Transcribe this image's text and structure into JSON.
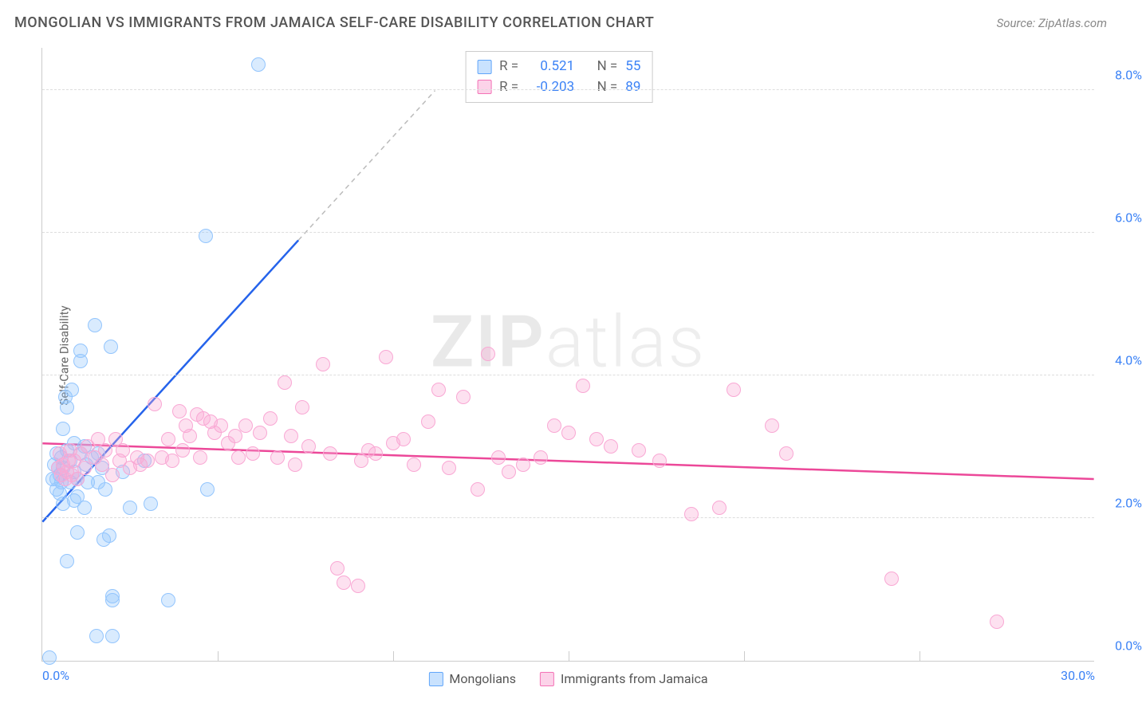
{
  "title": "MONGOLIAN VS IMMIGRANTS FROM JAMAICA SELF-CARE DISABILITY CORRELATION CHART",
  "source": "Source: ZipAtlas.com",
  "y_axis_label": "Self-Care Disability",
  "watermark_bold": "ZIP",
  "watermark_light": "atlas",
  "chart": {
    "type": "scatter",
    "xlim": [
      0,
      30
    ],
    "ylim": [
      0,
      8.6
    ],
    "y_ticks": [
      0,
      2,
      4,
      6,
      8
    ],
    "y_tick_labels": [
      "0.0%",
      "2.0%",
      "4.0%",
      "6.0%",
      "8.0%"
    ],
    "x_ticks": [
      0,
      5,
      10,
      15,
      20,
      25,
      30
    ],
    "x_tick_labels": [
      "0.0%",
      "",
      "",
      "",
      "",
      "",
      "30.0%"
    ],
    "background_color": "#ffffff",
    "grid_color": "#dddddd",
    "marker_size": 18,
    "series": [
      {
        "name": "Mongolians",
        "color_fill": "rgba(147,197,253,0.35)",
        "color_stroke": "#93c5fd",
        "trend_color": "#2563eb",
        "trend_dash_color": "#bbbbbb",
        "R": "0.521",
        "N": "55",
        "trend": {
          "x1": 0,
          "y1": 1.95,
          "x2_solid": 7.3,
          "y2_solid": 5.9,
          "x2_dash": 11.2,
          "y2_dash": 8.0
        },
        "points": [
          [
            0.2,
            0.05
          ],
          [
            0.3,
            2.55
          ],
          [
            0.35,
            2.75
          ],
          [
            0.4,
            2.4
          ],
          [
            0.4,
            2.55
          ],
          [
            0.4,
            2.9
          ],
          [
            0.45,
            2.7
          ],
          [
            0.5,
            2.35
          ],
          [
            0.5,
            2.6
          ],
          [
            0.55,
            2.85
          ],
          [
            0.55,
            2.5
          ],
          [
            0.6,
            3.25
          ],
          [
            0.6,
            2.2
          ],
          [
            0.6,
            2.7
          ],
          [
            0.65,
            3.7
          ],
          [
            0.7,
            2.95
          ],
          [
            0.7,
            3.55
          ],
          [
            0.7,
            1.4
          ],
          [
            0.8,
            2.5
          ],
          [
            0.8,
            2.8
          ],
          [
            0.85,
            3.8
          ],
          [
            0.9,
            2.25
          ],
          [
            0.9,
            2.65
          ],
          [
            0.9,
            3.05
          ],
          [
            1.0,
            1.8
          ],
          [
            1.0,
            2.3
          ],
          [
            1.0,
            2.55
          ],
          [
            1.1,
            2.9
          ],
          [
            1.1,
            4.2
          ],
          [
            1.1,
            4.35
          ],
          [
            1.2,
            2.15
          ],
          [
            1.2,
            3.0
          ],
          [
            1.25,
            2.75
          ],
          [
            1.3,
            2.5
          ],
          [
            1.4,
            2.85
          ],
          [
            1.5,
            4.7
          ],
          [
            1.55,
            0.35
          ],
          [
            1.6,
            2.9
          ],
          [
            1.6,
            2.5
          ],
          [
            1.7,
            2.7
          ],
          [
            1.75,
            1.7
          ],
          [
            1.8,
            2.4
          ],
          [
            1.9,
            1.75
          ],
          [
            1.95,
            4.4
          ],
          [
            2.0,
            0.9
          ],
          [
            2.0,
            0.85
          ],
          [
            2.0,
            0.35
          ],
          [
            2.3,
            2.65
          ],
          [
            2.5,
            2.15
          ],
          [
            2.9,
            2.8
          ],
          [
            3.1,
            2.2
          ],
          [
            3.6,
            0.85
          ],
          [
            4.65,
            5.95
          ],
          [
            4.7,
            2.4
          ],
          [
            6.15,
            8.35
          ]
        ]
      },
      {
        "name": "Immigrants from Jamaica",
        "color_fill": "rgba(249,168,212,0.35)",
        "color_stroke": "#f9a8d4",
        "trend_color": "#ec4899",
        "R": "-0.203",
        "N": "89",
        "trend": {
          "x1": 0,
          "y1": 3.05,
          "x2_solid": 30,
          "y2_solid": 2.55
        },
        "points": [
          [
            0.45,
            2.7
          ],
          [
            0.5,
            2.9
          ],
          [
            0.55,
            2.6
          ],
          [
            0.6,
            2.75
          ],
          [
            0.65,
            2.55
          ],
          [
            0.7,
            2.65
          ],
          [
            0.75,
            2.8
          ],
          [
            0.8,
            2.95
          ],
          [
            0.85,
            2.6
          ],
          [
            0.9,
            2.8
          ],
          [
            1.0,
            2.55
          ],
          [
            1.1,
            2.9
          ],
          [
            1.2,
            2.7
          ],
          [
            1.3,
            3.0
          ],
          [
            1.5,
            2.85
          ],
          [
            1.6,
            3.1
          ],
          [
            1.7,
            2.75
          ],
          [
            1.8,
            2.95
          ],
          [
            2.0,
            2.6
          ],
          [
            2.1,
            3.1
          ],
          [
            2.2,
            2.8
          ],
          [
            2.3,
            2.95
          ],
          [
            2.5,
            2.7
          ],
          [
            2.7,
            2.85
          ],
          [
            2.8,
            2.75
          ],
          [
            3.0,
            2.8
          ],
          [
            3.2,
            3.6
          ],
          [
            3.4,
            2.85
          ],
          [
            3.6,
            3.1
          ],
          [
            3.7,
            2.8
          ],
          [
            3.9,
            3.5
          ],
          [
            4.0,
            2.95
          ],
          [
            4.1,
            3.3
          ],
          [
            4.2,
            3.15
          ],
          [
            4.4,
            3.45
          ],
          [
            4.5,
            2.85
          ],
          [
            4.6,
            3.4
          ],
          [
            4.8,
            3.35
          ],
          [
            4.9,
            3.2
          ],
          [
            5.1,
            3.3
          ],
          [
            5.3,
            3.05
          ],
          [
            5.5,
            3.15
          ],
          [
            5.6,
            2.85
          ],
          [
            5.8,
            3.3
          ],
          [
            6.0,
            2.9
          ],
          [
            6.2,
            3.2
          ],
          [
            6.5,
            3.4
          ],
          [
            6.7,
            2.85
          ],
          [
            6.9,
            3.9
          ],
          [
            7.1,
            3.15
          ],
          [
            7.2,
            2.75
          ],
          [
            7.4,
            3.55
          ],
          [
            7.6,
            3.0
          ],
          [
            8.0,
            4.15
          ],
          [
            8.2,
            2.9
          ],
          [
            8.4,
            1.3
          ],
          [
            8.6,
            1.1
          ],
          [
            9.0,
            1.05
          ],
          [
            9.1,
            2.8
          ],
          [
            9.3,
            2.95
          ],
          [
            9.5,
            2.9
          ],
          [
            9.8,
            4.25
          ],
          [
            10.0,
            3.05
          ],
          [
            10.3,
            3.1
          ],
          [
            10.6,
            2.75
          ],
          [
            11.0,
            3.35
          ],
          [
            11.3,
            3.8
          ],
          [
            11.6,
            2.7
          ],
          [
            12.0,
            3.7
          ],
          [
            12.4,
            2.4
          ],
          [
            12.7,
            4.3
          ],
          [
            13.0,
            2.85
          ],
          [
            13.3,
            2.65
          ],
          [
            13.7,
            2.75
          ],
          [
            14.2,
            2.85
          ],
          [
            14.6,
            3.3
          ],
          [
            15.0,
            3.2
          ],
          [
            15.4,
            3.85
          ],
          [
            15.8,
            3.1
          ],
          [
            16.2,
            3.0
          ],
          [
            17.0,
            2.95
          ],
          [
            17.6,
            2.8
          ],
          [
            18.5,
            2.05
          ],
          [
            19.3,
            2.15
          ],
          [
            19.7,
            3.8
          ],
          [
            20.8,
            3.3
          ],
          [
            21.2,
            2.9
          ],
          [
            24.2,
            1.15
          ],
          [
            27.2,
            0.55
          ]
        ]
      }
    ]
  },
  "stats_label_R": "R =",
  "stats_label_N": "N =",
  "legend_labels": [
    "Mongolians",
    "Immigrants from Jamaica"
  ]
}
